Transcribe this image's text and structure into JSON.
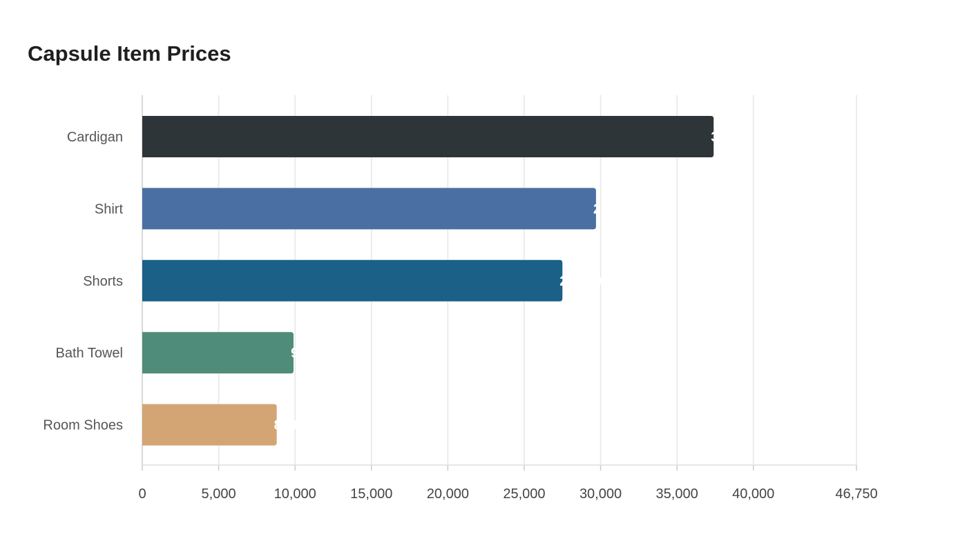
{
  "chart_data": {
    "type": "bar",
    "orientation": "horizontal",
    "title": "Capsule Item Prices",
    "categories": [
      "Cardigan",
      "Shirt",
      "Shorts",
      "Bath Towel",
      "Room Shoes"
    ],
    "values": [
      37400,
      29700,
      27500,
      9900,
      8800
    ],
    "colors": [
      "#2e3538",
      "#4a6fa3",
      "#1a6087",
      "#4f8c7a",
      "#d4a574"
    ],
    "xlim": [
      0,
      46750
    ],
    "xticks": [
      0,
      5000,
      10000,
      15000,
      20000,
      25000,
      30000,
      35000,
      40000,
      46750
    ],
    "xtick_labels": [
      "0",
      "5,000",
      "10,000",
      "15,000",
      "20,000",
      "25,000",
      "30,000",
      "35,000",
      "40,000",
      "46,750"
    ],
    "data_labels": [
      "37,400",
      "29,700",
      "27,500",
      "9,900",
      "8,800"
    ],
    "grid": true,
    "xlabel": "",
    "ylabel": ""
  }
}
